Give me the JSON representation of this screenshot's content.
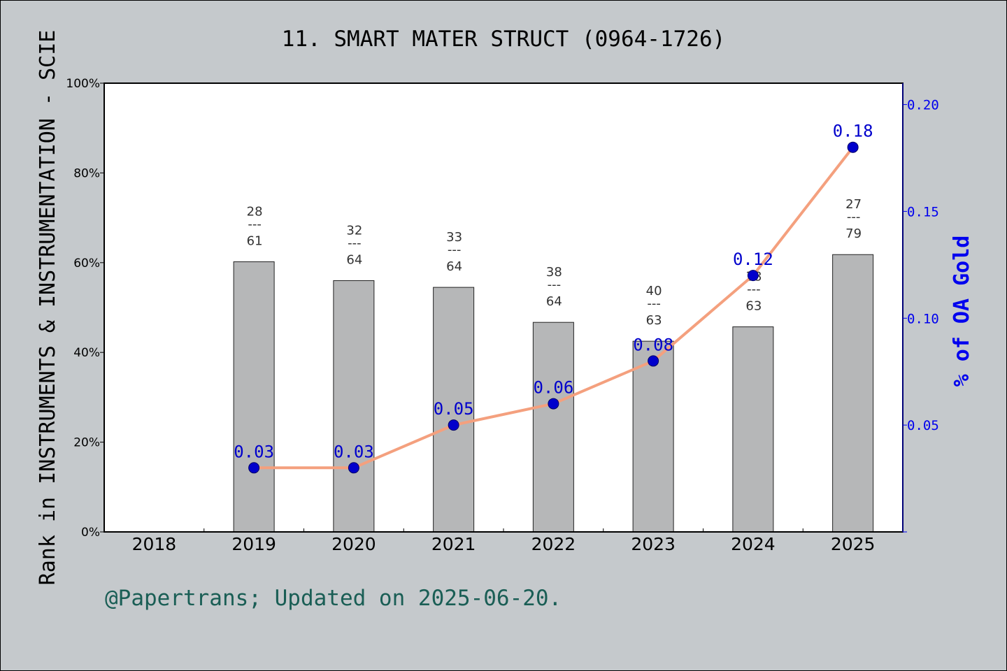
{
  "title": "11. SMART MATER STRUCT (0964-1726)",
  "footer": "@Papertrans; Updated on 2025-06-20.",
  "colors": {
    "background": "#c5c9cc",
    "plot_background": "#ffffff",
    "bar": "#b6b7b8",
    "line": "#f4a07e",
    "marker": "#0000cc",
    "right_axis": "#0000ee",
    "footer": "#1a5e55"
  },
  "chart_data": {
    "type": "bar",
    "title": "11. SMART MATER STRUCT (0964-1726)",
    "categories": [
      "2018",
      "2019",
      "2020",
      "2021",
      "2022",
      "2023",
      "2024",
      "2025"
    ],
    "ylabel": "Rank in INSTRUMENTS & INSTRUMENTATION - SCIE",
    "ylim": [
      0,
      100
    ],
    "yticks": [
      "0%",
      "20%",
      "40%",
      "60%",
      "80%",
      "100%"
    ],
    "y2label": "% of OA Gold",
    "y2lim": [
      0,
      0.21
    ],
    "y2ticks": [
      {
        "value": 0.05,
        "label": "0.05"
      },
      {
        "value": 0.1,
        "label": "0.10"
      },
      {
        "value": 0.15,
        "label": "0.15"
      },
      {
        "value": 0.2,
        "label": "0.20"
      }
    ],
    "bars": [
      {
        "category": "2018",
        "value": null,
        "rank": null,
        "total": null
      },
      {
        "category": "2019",
        "value": 60.2,
        "rank": "28",
        "total": "61"
      },
      {
        "category": "2020",
        "value": 56.0,
        "rank": "32",
        "total": "64"
      },
      {
        "category": "2021",
        "value": 54.5,
        "rank": "33",
        "total": "64"
      },
      {
        "category": "2022",
        "value": 46.7,
        "rank": "38",
        "total": "64"
      },
      {
        "category": "2023",
        "value": 42.5,
        "rank": "40",
        "total": "63"
      },
      {
        "category": "2024",
        "value": 45.7,
        "rank": "38",
        "total": "63"
      },
      {
        "category": "2025",
        "value": 61.8,
        "rank": "27",
        "total": "79"
      }
    ],
    "bar_label_separator": "---",
    "line_series": {
      "axis": "right",
      "points": [
        {
          "category": "2019",
          "value": 0.03,
          "label": "0.03"
        },
        {
          "category": "2020",
          "value": 0.03,
          "label": "0.03"
        },
        {
          "category": "2021",
          "value": 0.05,
          "label": "0.05"
        },
        {
          "category": "2022",
          "value": 0.06,
          "label": "0.06"
        },
        {
          "category": "2023",
          "value": 0.08,
          "label": "0.08"
        },
        {
          "category": "2024",
          "value": 0.12,
          "label": "0.12"
        },
        {
          "category": "2025",
          "value": 0.18,
          "label": "0.18"
        }
      ]
    }
  }
}
